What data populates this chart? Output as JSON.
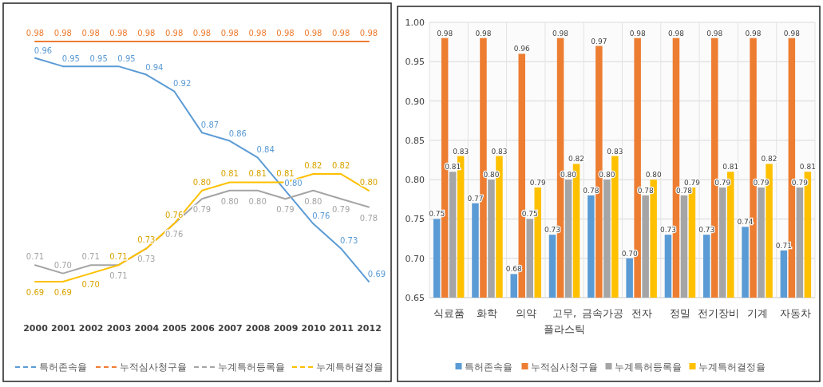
{
  "chart_data": [
    {
      "type": "line",
      "categories": [
        "2000",
        "2001",
        "2002",
        "2003",
        "2004",
        "2005",
        "2006",
        "2007",
        "2008",
        "2009",
        "2010",
        "2011",
        "2012"
      ],
      "series": [
        {
          "name": "특허존속율",
          "color": "#5b9bd5",
          "values": [
            0.96,
            0.95,
            0.95,
            0.95,
            0.94,
            0.92,
            0.87,
            0.86,
            0.84,
            0.8,
            0.76,
            0.73,
            0.69
          ],
          "value_labels": [
            "0.96",
            "0.95",
            "0.95",
            "0.95",
            "0.94",
            "0.92",
            "0.87",
            "0.86",
            "0.84",
            "0.80",
            "0.76",
            "0.73",
            "0.69"
          ]
        },
        {
          "name": "누적심사청구율",
          "color": "#ed7d31",
          "values": [
            0.98,
            0.98,
            0.98,
            0.98,
            0.98,
            0.98,
            0.98,
            0.98,
            0.98,
            0.98,
            0.98,
            0.98,
            0.98
          ],
          "value_labels": [
            "0.98",
            "0.98",
            "0.98",
            "0.98",
            "0.98",
            "0.98",
            "0.98",
            "0.98",
            "0.98",
            "0.98",
            "0.98",
            "0.98",
            "0.98"
          ]
        },
        {
          "name": "누계특허등록율",
          "color": "#a5a5a5",
          "values": [
            0.71,
            0.7,
            0.71,
            0.71,
            0.73,
            0.76,
            0.79,
            0.8,
            0.8,
            0.79,
            0.8,
            0.79,
            0.78
          ],
          "value_labels": [
            "0.71",
            "0.70",
            "0.71",
            "0.71",
            "0.73",
            "0.76",
            "0.79",
            "0.80",
            "0.80",
            "0.79",
            "0.80",
            "0.79",
            "0.78"
          ]
        },
        {
          "name": "누계특허결정율",
          "color": "#ffc000",
          "values": [
            0.69,
            0.69,
            0.7,
            0.71,
            0.73,
            0.76,
            0.8,
            0.81,
            0.81,
            0.81,
            0.82,
            0.82,
            0.8
          ],
          "value_labels": [
            "0.69",
            "0.69",
            "0.70",
            "0.71",
            "0.73",
            "0.76",
            "0.80",
            "0.81",
            "0.81",
            "0.81",
            "0.82",
            "0.82",
            "0.80"
          ]
        }
      ],
      "legend": "bottom",
      "marker": "none",
      "tick_labels": "x"
    },
    {
      "type": "bar",
      "categories": [
        "식료품",
        "화학",
        "의약",
        "고무, 플라스틱",
        "금속가공",
        "전자",
        "정밀",
        "전기장비",
        "기계",
        "자동차"
      ],
      "series": [
        {
          "name": "특허존속율",
          "color": "#5b9bd5",
          "values": [
            0.75,
            0.77,
            0.68,
            0.73,
            0.78,
            0.7,
            0.73,
            0.73,
            0.74,
            0.71
          ],
          "value_labels": [
            "0.75",
            "0.77",
            "0.68",
            "0.73",
            "0.78",
            "0.70",
            "0.73",
            "0.73",
            "0.74",
            "0.71"
          ]
        },
        {
          "name": "누적심사청구율",
          "color": "#ed7d31",
          "values": [
            0.98,
            0.98,
            0.96,
            0.98,
            0.97,
            0.98,
            0.98,
            0.98,
            0.98,
            0.98
          ],
          "value_labels": [
            "0.98",
            "0.98",
            "0.96",
            "0.98",
            "0.97",
            "0.98",
            "0.98",
            "0.98",
            "0.98",
            "0.98"
          ]
        },
        {
          "name": "누계특허등록율",
          "color": "#a5a5a5",
          "values": [
            0.81,
            0.8,
            0.75,
            0.8,
            0.8,
            0.78,
            0.78,
            0.79,
            0.79,
            0.79
          ],
          "value_labels": [
            "0.81",
            "0.80",
            "0.75",
            "0.80",
            "0.80",
            "0.78",
            "0.78",
            "0.79",
            "0.79",
            "0.79"
          ]
        },
        {
          "name": "누계특허결정율",
          "color": "#ffc000",
          "values": [
            0.83,
            0.83,
            0.79,
            0.82,
            0.83,
            0.8,
            0.79,
            0.81,
            0.82,
            0.81
          ],
          "value_labels": [
            "0.83",
            "0.83",
            "0.79",
            "0.82",
            "0.83",
            "0.80",
            "0.79",
            "0.81",
            "0.82",
            "0.81"
          ]
        }
      ],
      "ylim": [
        0.65,
        1.0
      ],
      "yticks": [
        {
          "value": 0.65,
          "label": "0.65"
        },
        {
          "value": 0.7,
          "label": "0.70"
        },
        {
          "value": 0.75,
          "label": "0.75"
        },
        {
          "value": 0.8,
          "label": "0.80"
        },
        {
          "value": 0.85,
          "label": "0.85"
        },
        {
          "value": 0.9,
          "label": "0.90"
        },
        {
          "value": 0.95,
          "label": "0.95"
        },
        {
          "value": 1.0,
          "label": "1.00"
        }
      ],
      "grid": true,
      "legend": "bottom"
    }
  ]
}
